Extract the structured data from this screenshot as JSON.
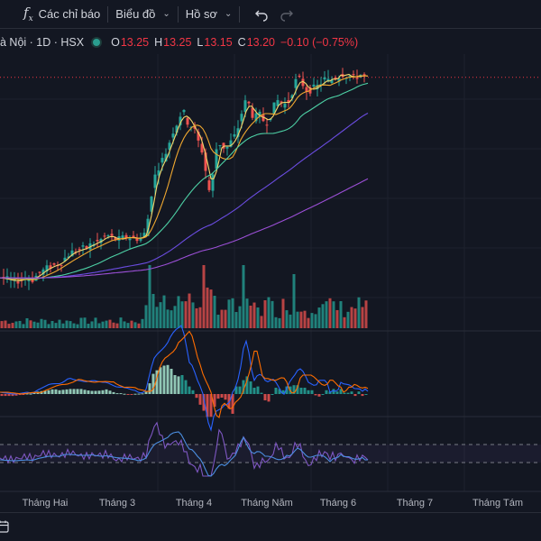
{
  "toolbar": {
    "indicators_label": "Các chỉ báo",
    "chart_label": "Biểu đồ",
    "profile_label": "Hồ sơ"
  },
  "legend": {
    "symbol": "à Nội · 1D · HSX",
    "open_key": "O",
    "open": "13.25",
    "high_key": "H",
    "high": "13.25",
    "low_key": "L",
    "low": "13.15",
    "close_key": "C",
    "close": "13.20",
    "change": "−0.10 (−0.75%)"
  },
  "x_axis_labels": [
    "Tháng Hai",
    "Tháng 3",
    "Tháng 4",
    "Tháng Năm",
    "Tháng 6",
    "Tháng 7",
    "Tháng Tám"
  ],
  "colors": {
    "background": "#131722",
    "up": "#26a69a",
    "down": "#ef5350",
    "ma_fast": "#e9c46a",
    "ma_mid": "#4dd0a5",
    "ma_slow": "#6a4ce0",
    "ma_long": "#9b4fd6",
    "macd": "#2962ff",
    "signal": "#ff6d00",
    "rsi": "#7e57c2"
  },
  "icons": [
    "fx-icon",
    "chevron-down-icon",
    "undo-icon",
    "redo-icon",
    "calendar-icon"
  ],
  "chart_data": {
    "type": "candlestick",
    "price_path": [
      [
        0,
        7.6
      ],
      [
        8,
        7.55
      ],
      [
        16,
        7.5
      ],
      [
        24,
        7.55
      ],
      [
        30,
        7.6
      ],
      [
        36,
        7.55
      ],
      [
        42,
        7.7
      ],
      [
        48,
        7.8
      ],
      [
        54,
        7.9
      ],
      [
        60,
        7.95
      ],
      [
        66,
        8.0
      ],
      [
        72,
        8.15
      ],
      [
        78,
        8.3
      ],
      [
        84,
        8.35
      ],
      [
        90,
        8.4
      ],
      [
        96,
        8.45
      ],
      [
        102,
        8.55
      ],
      [
        108,
        8.6
      ],
      [
        114,
        8.7
      ],
      [
        118,
        8.8
      ],
      [
        122,
        8.75
      ],
      [
        126,
        8.7
      ],
      [
        130,
        8.65
      ],
      [
        134,
        8.7
      ],
      [
        138,
        8.72
      ],
      [
        142,
        8.75
      ],
      [
        146,
        8.7
      ],
      [
        150,
        8.72
      ],
      [
        154,
        8.68
      ],
      [
        158,
        8.75
      ],
      [
        162,
        8.9
      ],
      [
        166,
        9.6
      ],
      [
        170,
        10.3
      ],
      [
        174,
        10.6
      ],
      [
        178,
        10.8
      ],
      [
        182,
        11.0
      ],
      [
        186,
        11.2
      ],
      [
        190,
        11.6
      ],
      [
        194,
        11.8
      ],
      [
        198,
        12.0
      ],
      [
        202,
        12.3
      ],
      [
        206,
        12.1
      ],
      [
        210,
        11.8
      ],
      [
        214,
        11.9
      ],
      [
        218,
        11.5
      ],
      [
        222,
        11.3
      ],
      [
        226,
        11.0
      ],
      [
        230,
        10.2
      ],
      [
        234,
        9.9
      ],
      [
        238,
        11.0
      ],
      [
        242,
        11.4
      ],
      [
        246,
        11.3
      ],
      [
        250,
        11.2
      ],
      [
        254,
        11.3
      ],
      [
        258,
        11.5
      ],
      [
        262,
        11.6
      ],
      [
        266,
        12.0
      ],
      [
        270,
        12.4
      ],
      [
        274,
        12.6
      ],
      [
        278,
        12.3
      ],
      [
        282,
        12.0
      ],
      [
        286,
        12.2
      ],
      [
        290,
        12.1
      ],
      [
        294,
        11.9
      ],
      [
        298,
        12.0
      ],
      [
        302,
        12.3
      ],
      [
        306,
        12.5
      ],
      [
        310,
        12.6
      ],
      [
        314,
        12.4
      ],
      [
        318,
        12.5
      ],
      [
        322,
        12.6
      ],
      [
        326,
        13.0
      ],
      [
        330,
        13.2
      ],
      [
        334,
        13.1
      ],
      [
        338,
        12.9
      ],
      [
        342,
        12.8
      ],
      [
        346,
        12.9
      ],
      [
        350,
        12.9
      ],
      [
        354,
        13.0
      ],
      [
        358,
        13.1
      ],
      [
        362,
        13.2
      ],
      [
        366,
        13.0
      ],
      [
        370,
        13.3
      ],
      [
        374,
        13.1
      ],
      [
        378,
        13.4
      ],
      [
        382,
        13.2
      ],
      [
        386,
        13.3
      ],
      [
        390,
        13.2
      ],
      [
        394,
        13.15
      ],
      [
        398,
        13.3
      ],
      [
        402,
        13.25
      ],
      [
        406,
        13.2
      ]
    ],
    "last_price": "13.20"
  }
}
